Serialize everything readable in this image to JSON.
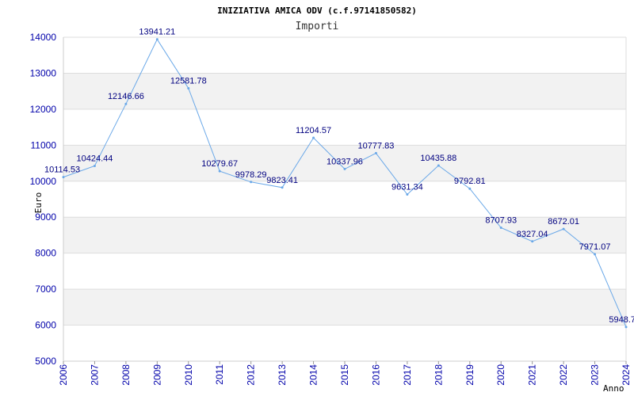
{
  "chart_data": {
    "type": "line",
    "title": "INIZIATIVA AMICA ODV (c.f.97141850582)",
    "subtitle": "Importi",
    "xlabel": "Anno",
    "ylabel": "Euro",
    "x": [
      "2006",
      "2007",
      "2008",
      "2009",
      "2010",
      "2011",
      "2012",
      "2013",
      "2014",
      "2015",
      "2016",
      "2017",
      "2018",
      "2019",
      "2020",
      "2021",
      "2022",
      "2023",
      "2024"
    ],
    "values": [
      10114.53,
      10424.44,
      12146.66,
      13941.21,
      12581.78,
      10279.67,
      9978.29,
      9823.41,
      11204.57,
      10337.96,
      10777.83,
      9631.34,
      10435.88,
      9792.81,
      8707.93,
      8327.04,
      8672.01,
      7971.07,
      5948.7
    ],
    "data_labels": [
      "10114.53",
      "10424.44",
      "12146.66",
      "13941.21",
      "12581.78",
      "10279.67",
      "9978.29",
      "9823.41",
      "11204.57",
      "10337.96",
      "10777.83",
      "9631.34",
      "10435.88",
      "9792.81",
      "8707.93",
      "8327.04",
      "8672.01",
      "7971.07",
      "5948.7"
    ],
    "yticks": [
      "5000",
      "6000",
      "7000",
      "8000",
      "9000",
      "10000",
      "11000",
      "12000",
      "13000",
      "14000"
    ],
    "ylim": [
      5000,
      14000
    ],
    "grid": true,
    "band_color": "#f2f2f2",
    "line_color": "#6aa8e8",
    "tick_color": "#0000aa"
  }
}
